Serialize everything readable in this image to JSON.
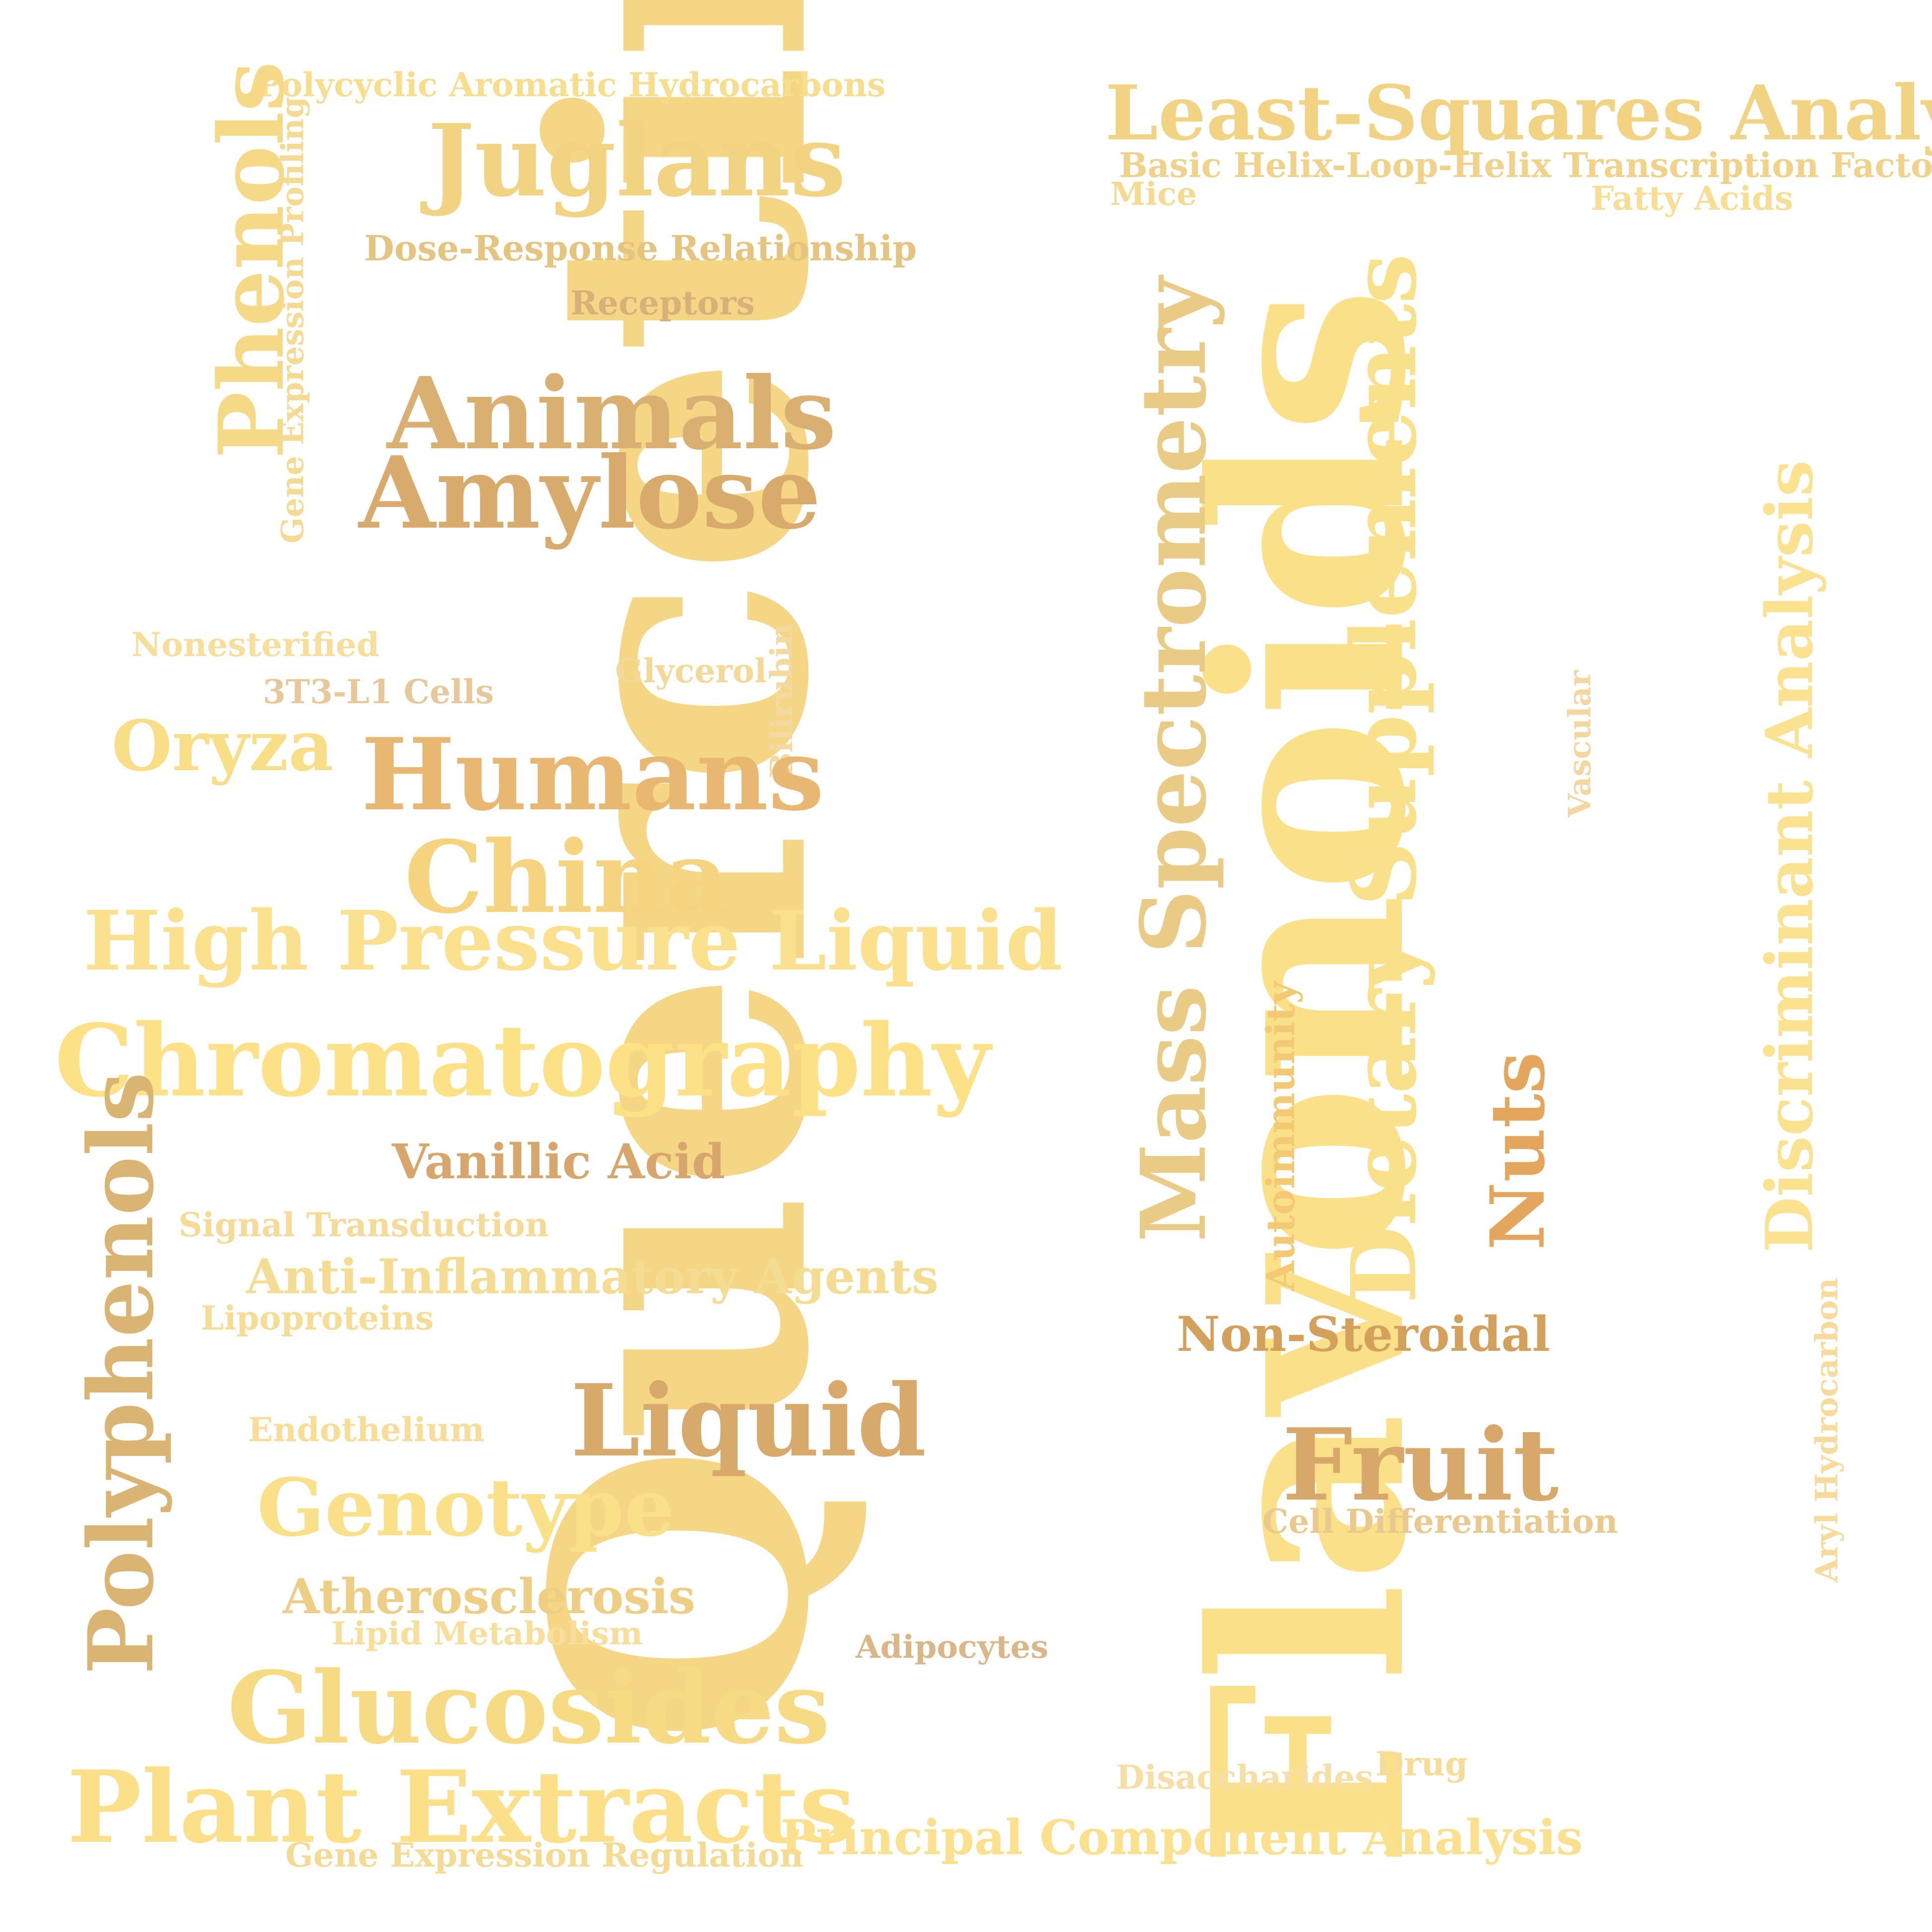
{
  "words": [
    {
      "text": "Quercetin",
      "color": "#F4D685"
    },
    {
      "text": "Flavonoids",
      "color": "#FBE08A"
    },
    {
      "text": "Least-Squares Analysis",
      "color": "#F1D383"
    },
    {
      "text": "Basic Helix-Loop-Helix Transcription Factors",
      "color": "#F0D28A"
    },
    {
      "text": "Mice",
      "color": "#F6DA92"
    },
    {
      "text": "Fatty Acids",
      "color": "#F7DE95"
    },
    {
      "text": "Polycyclic Aromatic Hydrocarbons",
      "color": "#F7DE8F"
    },
    {
      "text": "Juglans",
      "color": "#F2D382"
    },
    {
      "text": "Phenols",
      "color": "#F5D987"
    },
    {
      "text": "Gene Expression Profiling",
      "color": "#F5DA93"
    },
    {
      "text": "Dose-Response Relationship",
      "color": "#E5C47F"
    },
    {
      "text": "Receptors",
      "color": "#D7B07A"
    },
    {
      "text": "Animals",
      "color": "#D9AF72"
    },
    {
      "text": "Amylose",
      "color": "#D8AA6B"
    },
    {
      "text": "Mass Spectrometry",
      "color": "#E9CB86"
    },
    {
      "text": "Dietary Supplements",
      "color": "#F9E08B"
    },
    {
      "text": "Discriminant Analysis",
      "color": "#FBE291"
    },
    {
      "text": "Nonesterified",
      "color": "#F8DE9B"
    },
    {
      "text": "3T3-L1 Cells",
      "color": "#E6C89A"
    },
    {
      "text": "Glycerol",
      "color": "#F4D897"
    },
    {
      "text": "Bilirubin",
      "color": "#F4DAA0"
    },
    {
      "text": "Oryza",
      "color": "#F8DE87"
    },
    {
      "text": "Humans",
      "color": "#E8B872"
    },
    {
      "text": "China",
      "color": "#F6D47F"
    },
    {
      "text": "Vascular",
      "color": "#F4D7A0"
    },
    {
      "text": "High Pressure Liquid",
      "color": "#FBE08E"
    },
    {
      "text": "Chromatography",
      "color": "#FDE186"
    },
    {
      "text": "Autoimmunity",
      "color": "#F3C974"
    },
    {
      "text": "Nuts",
      "color": "#E3A65C"
    },
    {
      "text": "Vanillic Acid",
      "color": "#D7A66D"
    },
    {
      "text": "Polyphenols",
      "color": "#D9B473"
    },
    {
      "text": "Signal Transduction",
      "color": "#F5DB97"
    },
    {
      "text": "Anti-Inflammatory Agents",
      "color": "#F4DC92"
    },
    {
      "text": "Lipoproteins",
      "color": "#F7DC96"
    },
    {
      "text": "Non-Steroidal",
      "color": "#D4A15D"
    },
    {
      "text": "Liquid",
      "color": "#D7AA6B"
    },
    {
      "text": "Aryl Hydrocarbon",
      "color": "#F6DB9D"
    },
    {
      "text": "Endothelium",
      "color": "#F8DD98"
    },
    {
      "text": "Fruit",
      "color": "#D7A86A"
    },
    {
      "text": "Genotype",
      "color": "#FBE08A"
    },
    {
      "text": "Cell Differentiation",
      "color": "#E9C98E"
    },
    {
      "text": "Atherosclerosis",
      "color": "#EDCE84"
    },
    {
      "text": "Lipid Metabolism",
      "color": "#F7DE9B"
    },
    {
      "text": "Adipocytes",
      "color": "#D9B788"
    },
    {
      "text": "Glucosides",
      "color": "#F7DB84"
    },
    {
      "text": "Disaccharides",
      "color": "#F6DEA4"
    },
    {
      "text": "Drug",
      "color": "#F6DC98"
    },
    {
      "text": "Plant Extracts",
      "color": "#FCE089"
    },
    {
      "text": "Principal Component Analysis",
      "color": "#FBE08E"
    },
    {
      "text": "Gene Expression Regulation",
      "color": "#F5DA93"
    }
  ]
}
